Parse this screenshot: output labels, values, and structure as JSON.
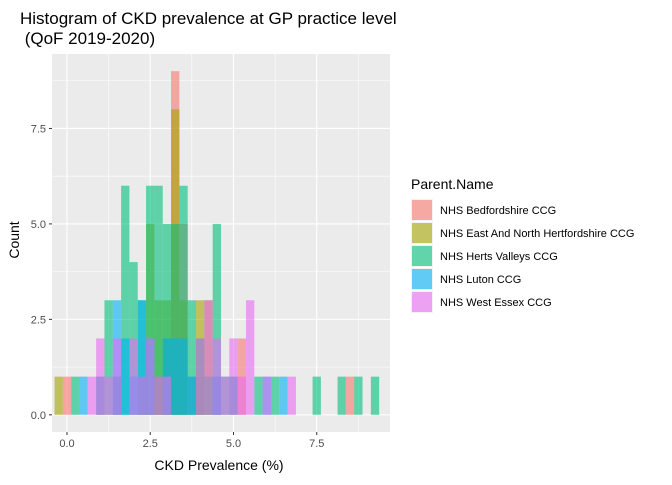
{
  "chart_data": {
    "type": "histogram",
    "title_line1": "Histogram of CKD prevalence at GP practice level",
    "title_line2": " (QoF 2019-2020)",
    "xlabel": "CKD Prevalence (%)",
    "ylabel": "Count",
    "xlim": [
      -0.45,
      9.7
    ],
    "ylim": [
      -0.45,
      9.45
    ],
    "x_ticks": [
      0,
      2.5,
      5,
      7.5
    ],
    "x_tick_labels": [
      "0.0",
      "2.5",
      "5.0",
      "7.5"
    ],
    "y_ticks": [
      0,
      2.5,
      5,
      7.5
    ],
    "y_tick_labels": [
      "0.0",
      "2.5",
      "5.0",
      "7.5"
    ],
    "bin_width": 0.25,
    "grid": true,
    "panel_background": "#ebebeb",
    "legend_title": "Parent.Name",
    "legend_position": "right",
    "bar_opacity": 0.6,
    "series": [
      {
        "name": "NHS Bedfordshire CCG",
        "color": "#F8766D",
        "bins": [
          [
            0,
            1
          ],
          [
            1.5,
            1
          ],
          [
            2.75,
            1
          ],
          [
            3,
            2
          ],
          [
            3.25,
            9
          ],
          [
            3.5,
            5
          ],
          [
            3.75,
            1
          ],
          [
            4,
            1
          ],
          [
            4.5,
            1
          ],
          [
            5.25,
            2
          ],
          [
            8.5,
            1
          ]
        ]
      },
      {
        "name": "NHS East And North Hertfordshire CCG",
        "color": "#A3A500",
        "bins": [
          [
            -0.25,
            1
          ],
          [
            1,
            1
          ],
          [
            2.25,
            1
          ],
          [
            2.5,
            5
          ],
          [
            2.75,
            3
          ],
          [
            3,
            3
          ],
          [
            3.25,
            8
          ],
          [
            3.5,
            3
          ],
          [
            4,
            3
          ],
          [
            4.25,
            3
          ],
          [
            5,
            1
          ]
        ]
      },
      {
        "name": "NHS Herts Valleys CCG",
        "color": "#00BF7D",
        "bins": [
          [
            0.25,
            1
          ],
          [
            1.25,
            3
          ],
          [
            1.5,
            1
          ],
          [
            1.75,
            6
          ],
          [
            2,
            4
          ],
          [
            2.25,
            3
          ],
          [
            2.5,
            6
          ],
          [
            2.75,
            6
          ],
          [
            3,
            5
          ],
          [
            3.25,
            5
          ],
          [
            3.5,
            6
          ],
          [
            3.75,
            3
          ],
          [
            4,
            2
          ],
          [
            4.25,
            1
          ],
          [
            4.5,
            5
          ],
          [
            4.75,
            1
          ],
          [
            5.75,
            1
          ],
          [
            6.25,
            1
          ],
          [
            7.5,
            1
          ],
          [
            8.25,
            1
          ],
          [
            8.75,
            1
          ],
          [
            9.25,
            1
          ]
        ]
      },
      {
        "name": "NHS Luton CCG",
        "color": "#00B0F6",
        "bins": [
          [
            0.5,
            1
          ],
          [
            1,
            1
          ],
          [
            1.5,
            3
          ],
          [
            1.75,
            2
          ],
          [
            2,
            1
          ],
          [
            2.25,
            3
          ],
          [
            2.5,
            2
          ],
          [
            3,
            2
          ],
          [
            3.25,
            2
          ],
          [
            3.5,
            2
          ],
          [
            3.75,
            1
          ],
          [
            4.5,
            1
          ],
          [
            5,
            1
          ],
          [
            6,
            1
          ],
          [
            6.5,
            1
          ]
        ]
      },
      {
        "name": "NHS West Essex CCG",
        "color": "#E76BF3",
        "bins": [
          [
            0.75,
            1
          ],
          [
            1,
            2
          ],
          [
            1.25,
            1
          ],
          [
            1.5,
            2
          ],
          [
            2,
            2
          ],
          [
            2.25,
            1
          ],
          [
            2.5,
            2
          ],
          [
            2.75,
            1
          ],
          [
            3,
            1
          ],
          [
            4,
            2
          ],
          [
            4.25,
            3
          ],
          [
            4.5,
            2
          ],
          [
            4.75,
            1
          ],
          [
            5,
            2
          ],
          [
            5.25,
            1
          ],
          [
            5.5,
            3
          ],
          [
            6,
            1
          ],
          [
            6.75,
            1
          ]
        ]
      }
    ]
  }
}
